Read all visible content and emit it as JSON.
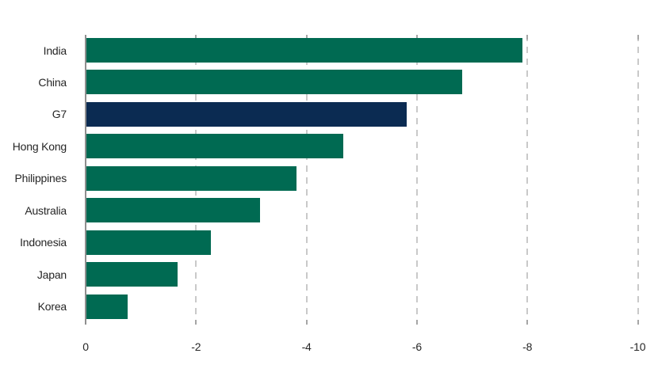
{
  "chart_data": {
    "type": "bar",
    "orientation": "horizontal",
    "categories": [
      "India",
      "China",
      "G7",
      "Hong Kong",
      "Philippines",
      "Australia",
      "Indonesia",
      "Japan",
      "Korea"
    ],
    "values": [
      -7.9,
      -6.8,
      -5.8,
      -4.65,
      -3.8,
      -3.15,
      -2.25,
      -1.65,
      -0.75
    ],
    "highlight_category": "G7",
    "x_axis": {
      "ticks": [
        0,
        -2,
        -4,
        -6,
        -8,
        -10
      ],
      "tick_labels": [
        "0",
        "-2",
        "-4",
        "-6",
        "-8",
        "-10"
      ],
      "range": [
        0,
        -10
      ],
      "direction": "negative-values-extend-right",
      "gridlines": "vertical-dashed"
    },
    "legend_position": "none",
    "colors": {
      "bar": "#006a52",
      "highlight_bar": "#0b2b52",
      "gridline": "#c9c9c9",
      "axis_line": "#8f8f8f",
      "tick": "#a6a6a6",
      "text": "#262626",
      "background": "#ffffff"
    }
  }
}
